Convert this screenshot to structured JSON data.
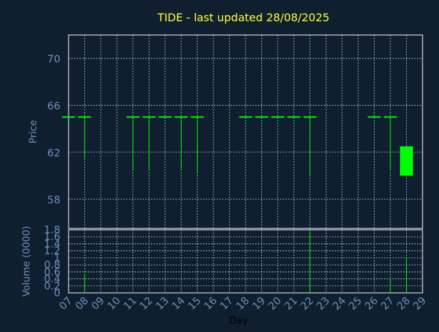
{
  "title": "TIDE - last updated 28/08/2025",
  "colors": {
    "background": "#0f1f30",
    "frame": "#ffffff",
    "grid": "#c8d2dc",
    "title": "#ffff33",
    "axis_text": "#6f8fb8",
    "candle": "#00ff00",
    "xlabel": "#000000"
  },
  "chart_data": [
    {
      "type": "candlestick",
      "title": "TIDE - last updated 28/08/2025",
      "xlabel": "",
      "ylabel": "Price",
      "x_range": [
        7,
        29
      ],
      "ylim": [
        55.5,
        72.0
      ],
      "y_ticks": [
        58,
        62,
        66,
        70
      ],
      "grid": true,
      "candles": [
        {
          "day": 7,
          "open": 65.0,
          "close": 65.0,
          "high": 65.0,
          "low": 65.0
        },
        {
          "day": 8,
          "open": 65.0,
          "close": 65.0,
          "high": 65.0,
          "low": 61.5
        },
        {
          "day": 11,
          "open": 65.0,
          "close": 65.0,
          "high": 65.0,
          "low": 60.5
        },
        {
          "day": 12,
          "open": 65.0,
          "close": 65.0,
          "high": 65.0,
          "low": 60.5
        },
        {
          "day": 13,
          "open": 65.0,
          "close": 65.0,
          "high": 65.0,
          "low": 65.0
        },
        {
          "day": 14,
          "open": 65.0,
          "close": 65.0,
          "high": 65.0,
          "low": 60.5
        },
        {
          "day": 15,
          "open": 65.0,
          "close": 65.0,
          "high": 65.0,
          "low": 60.2
        },
        {
          "day": 18,
          "open": 65.0,
          "close": 65.0,
          "high": 65.0,
          "low": 65.0
        },
        {
          "day": 19,
          "open": 65.0,
          "close": 65.0,
          "high": 65.0,
          "low": 65.0
        },
        {
          "day": 20,
          "open": 65.0,
          "close": 65.0,
          "high": 65.0,
          "low": 65.0
        },
        {
          "day": 21,
          "open": 65.0,
          "close": 65.0,
          "high": 65.0,
          "low": 65.0
        },
        {
          "day": 22,
          "open": 65.0,
          "close": 65.0,
          "high": 65.0,
          "low": 60.0
        },
        {
          "day": 26,
          "open": 65.0,
          "close": 65.0,
          "high": 65.0,
          "low": 65.0
        },
        {
          "day": 27,
          "open": 65.0,
          "close": 65.0,
          "high": 65.0,
          "low": 60.5
        },
        {
          "day": 28,
          "open": 60.0,
          "close": 62.5,
          "high": 62.5,
          "low": 60.0
        }
      ]
    },
    {
      "type": "bar",
      "xlabel": "Day",
      "ylabel": "Volume (0000)",
      "x_range": [
        7,
        29
      ],
      "ylim": [
        0,
        1.8
      ],
      "y_ticks": [
        "0",
        "0.2",
        "0.4",
        "0.6",
        "0.8",
        "1",
        "1.2",
        "1.4",
        "1.6",
        "1.8"
      ],
      "x_ticks": [
        "07",
        "08",
        "09",
        "10",
        "11",
        "12",
        "13",
        "14",
        "15",
        "16",
        "17",
        "18",
        "19",
        "20",
        "21",
        "22",
        "23",
        "24",
        "25",
        "26",
        "27",
        "28",
        "29"
      ],
      "grid": true,
      "bars": [
        {
          "day": 8,
          "value": 0.55
        },
        {
          "day": 22,
          "value": 1.75
        },
        {
          "day": 27,
          "value": 0.4
        },
        {
          "day": 28,
          "value": 1.0
        }
      ]
    }
  ]
}
